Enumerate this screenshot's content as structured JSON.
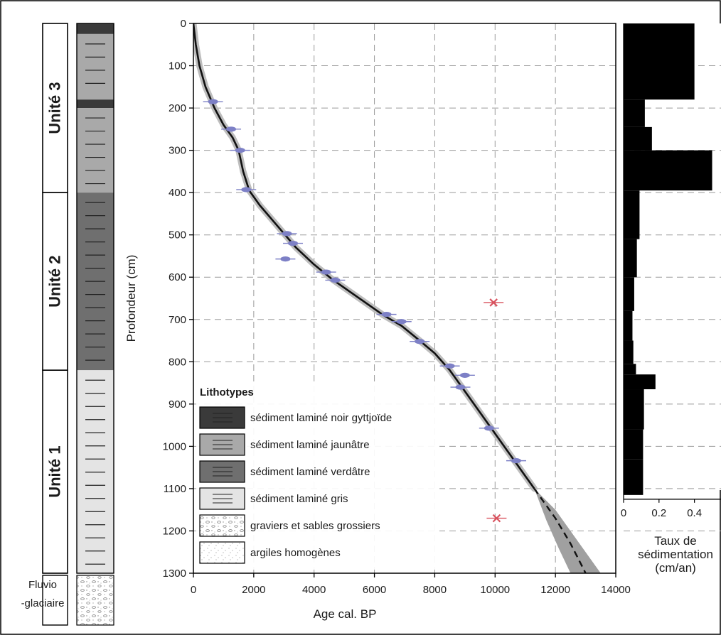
{
  "colors": {
    "noir": "#3a3a3a",
    "jaunatre": "#a9a9a9",
    "verdatre": "#6f6f6f",
    "gris": "#e4e4e4",
    "curve": "#111111",
    "envelope": "#a0a0a0",
    "date_ok": "#7d80c6",
    "date_rejected": "#d9535f",
    "rate_bar": "#000000",
    "grid": "#9a9a9a"
  },
  "units": [
    {
      "label": "Unité 3",
      "top_cm": 0,
      "bottom_cm": 400
    },
    {
      "label": "Unité 2",
      "top_cm": 400,
      "bottom_cm": 820
    },
    {
      "label": "Unité 1",
      "top_cm": 820,
      "bottom_cm": 1300
    }
  ],
  "fluvio_label_1": "Fluvio",
  "fluvio_label_2": "-glaciaire",
  "lithology": [
    {
      "type": "noir",
      "top_cm": 0,
      "bottom_cm": 25
    },
    {
      "type": "jaunatre",
      "top_cm": 25,
      "bottom_cm": 180
    },
    {
      "type": "noir",
      "top_cm": 180,
      "bottom_cm": 200
    },
    {
      "type": "jaunatre",
      "top_cm": 200,
      "bottom_cm": 400
    },
    {
      "type": "verdatre",
      "top_cm": 400,
      "bottom_cm": 820
    },
    {
      "type": "gris",
      "top_cm": 820,
      "bottom_cm": 1300
    }
  ],
  "legend": {
    "title": "Lithotypes",
    "items": [
      {
        "type": "noir",
        "label": "sédiment laminé noir gyttjoïde"
      },
      {
        "type": "jaunatre",
        "label": "sédiment laminé jaunâtre"
      },
      {
        "type": "verdatre",
        "label": "sédiment laminé verdâtre"
      },
      {
        "type": "gris",
        "label": "sédiment laminé gris"
      },
      {
        "type": "graviers",
        "label": "graviers et sables grossiers"
      },
      {
        "type": "argiles",
        "label": "argiles homogènes"
      }
    ]
  },
  "chart_data": [
    {
      "type": "line",
      "xlabel": "Age cal. BP",
      "ylabel": "Profondeur (cm)",
      "xlim": [
        0,
        14000
      ],
      "ylim": [
        1300,
        0
      ],
      "xticks": [
        0,
        2000,
        4000,
        6000,
        8000,
        10000,
        12000,
        14000
      ],
      "yticks": [
        0,
        100,
        200,
        300,
        400,
        500,
        600,
        700,
        800,
        900,
        1000,
        1100,
        1200,
        1300
      ],
      "grid": true,
      "age_model": {
        "x": [
          0,
          80,
          200,
          400,
          700,
          1000,
          1300,
          1500,
          1650,
          1850,
          2200,
          2800,
          3400,
          4000,
          4600,
          5200,
          5800,
          6300,
          6900,
          7500,
          8000,
          8500,
          9000,
          9500,
          10000,
          10500,
          11000,
          11300
        ],
        "y": [
          0,
          50,
          100,
          150,
          200,
          240,
          270,
          300,
          350,
          395,
          430,
          480,
          530,
          570,
          605,
          635,
          665,
          690,
          715,
          750,
          780,
          820,
          870,
          920,
          970,
          1020,
          1070,
          1100
        ]
      },
      "extrapolation": {
        "x": [
          11300,
          12000,
          12500,
          13000
        ],
        "y": [
          1100,
          1170,
          1230,
          1300
        ]
      },
      "envelope_upper": {
        "x": [
          11300,
          12000,
          12700,
          13500
        ],
        "y": [
          1100,
          1150,
          1220,
          1300
        ]
      },
      "envelope_lower": {
        "x": [
          11300,
          11700,
          12100,
          12500
        ],
        "y": [
          1100,
          1175,
          1240,
          1300
        ]
      },
      "dates_accepted": [
        {
          "age": 650,
          "depth": 185
        },
        {
          "age": 1250,
          "depth": 250
        },
        {
          "age": 1550,
          "depth": 300
        },
        {
          "age": 1750,
          "depth": 393
        },
        {
          "age": 3100,
          "depth": 497
        },
        {
          "age": 3300,
          "depth": 520
        },
        {
          "age": 3050,
          "depth": 557
        },
        {
          "age": 4400,
          "depth": 588
        },
        {
          "age": 4700,
          "depth": 607
        },
        {
          "age": 6400,
          "depth": 688
        },
        {
          "age": 6900,
          "depth": 705
        },
        {
          "age": 7500,
          "depth": 752
        },
        {
          "age": 8500,
          "depth": 810
        },
        {
          "age": 9000,
          "depth": 832
        },
        {
          "age": 8850,
          "depth": 860
        },
        {
          "age": 9800,
          "depth": 957
        },
        {
          "age": 10700,
          "depth": 1034
        }
      ],
      "dates_rejected": [
        {
          "age": 9950,
          "depth": 660
        },
        {
          "age": 10050,
          "depth": 1170
        }
      ]
    },
    {
      "type": "bar",
      "xlabel_line1": "Taux de",
      "xlabel_line2": "sédimentation",
      "xlabel_line3": "(cm/an)",
      "xlim": [
        0,
        0.55
      ],
      "xticks": [
        0,
        0.2,
        0.4
      ],
      "xtick_labels": [
        "0",
        "0.2",
        "0.4"
      ],
      "ylim": [
        1300,
        0
      ],
      "intervals": [
        {
          "top": 0,
          "bottom": 180,
          "rate": 0.4
        },
        {
          "top": 180,
          "bottom": 245,
          "rate": 0.12
        },
        {
          "top": 245,
          "bottom": 300,
          "rate": 0.16
        },
        {
          "top": 300,
          "bottom": 395,
          "rate": 0.5
        },
        {
          "top": 395,
          "bottom": 510,
          "rate": 0.09
        },
        {
          "top": 510,
          "bottom": 600,
          "rate": 0.075
        },
        {
          "top": 600,
          "bottom": 680,
          "rate": 0.06
        },
        {
          "top": 680,
          "bottom": 750,
          "rate": 0.05
        },
        {
          "top": 750,
          "bottom": 805,
          "rate": 0.055
        },
        {
          "top": 805,
          "bottom": 830,
          "rate": 0.07
        },
        {
          "top": 830,
          "bottom": 865,
          "rate": 0.18
        },
        {
          "top": 865,
          "bottom": 960,
          "rate": 0.115
        },
        {
          "top": 960,
          "bottom": 1030,
          "rate": 0.11
        },
        {
          "top": 1030,
          "bottom": 1115,
          "rate": 0.11
        }
      ]
    }
  ]
}
